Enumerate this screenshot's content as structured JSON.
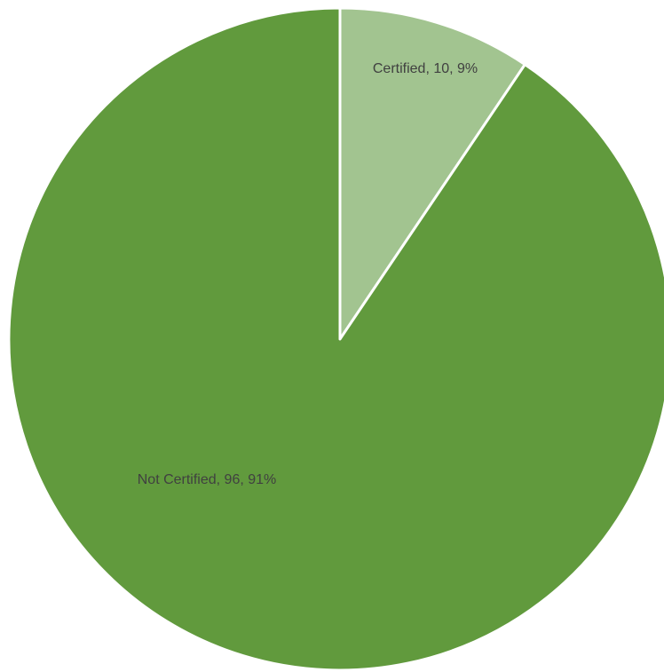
{
  "chart_data": {
    "type": "pie",
    "title": "",
    "slices": [
      {
        "name": "Certified",
        "value": 10,
        "percent": 9,
        "label": "Certified, 10, 9%",
        "color": "#a2c490"
      },
      {
        "name": "Not Certified",
        "value": 96,
        "percent": 91,
        "label": "Not Certified, 96, 91%",
        "color": "#619a3d"
      }
    ],
    "start_angle_deg": 0,
    "direction": "clockwise",
    "slice_border_color": "#ffffff",
    "label_color": "#404040",
    "legend": "none"
  }
}
